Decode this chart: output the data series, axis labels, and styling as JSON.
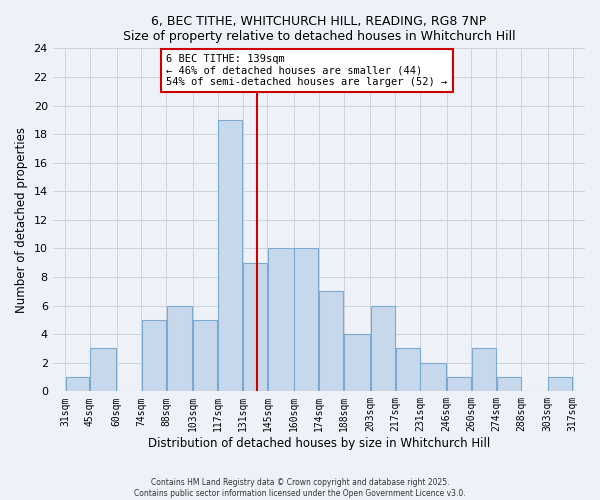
{
  "title_line1": "6, BEC TITHE, WHITCHURCH HILL, READING, RG8 7NP",
  "title_line2": "Size of property relative to detached houses in Whitchurch Hill",
  "xlabel": "Distribution of detached houses by size in Whitchurch Hill",
  "ylabel": "Number of detached properties",
  "bin_edges": [
    31,
    45,
    60,
    74,
    88,
    103,
    117,
    131,
    145,
    160,
    174,
    188,
    203,
    217,
    231,
    246,
    260,
    274,
    288,
    303,
    317
  ],
  "bin_labels": [
    "31sqm",
    "45sqm",
    "60sqm",
    "74sqm",
    "88sqm",
    "103sqm",
    "117sqm",
    "131sqm",
    "145sqm",
    "160sqm",
    "174sqm",
    "188sqm",
    "203sqm",
    "217sqm",
    "231sqm",
    "246sqm",
    "260sqm",
    "274sqm",
    "288sqm",
    "303sqm",
    "317sqm"
  ],
  "counts": [
    1,
    3,
    0,
    5,
    6,
    5,
    19,
    9,
    10,
    10,
    7,
    4,
    6,
    3,
    2,
    1,
    3,
    1,
    0,
    1
  ],
  "bar_color": "#c8d8ec",
  "bar_edge_color": "#7aaad0",
  "vline_x": 139,
  "vline_color": "#cc0000",
  "ylim": [
    0,
    24
  ],
  "yticks": [
    0,
    2,
    4,
    6,
    8,
    10,
    12,
    14,
    16,
    18,
    20,
    22,
    24
  ],
  "annotation_title": "6 BEC TITHE: 139sqm",
  "annotation_line1": "← 46% of detached houses are smaller (44)",
  "annotation_line2": "54% of semi-detached houses are larger (52) →",
  "annotation_box_color": "#ffffff",
  "annotation_box_edge": "#cc0000",
  "grid_color": "#c8d4e0",
  "background_color": "#eef2f8",
  "footer_line1": "Contains HM Land Registry data © Crown copyright and database right 2025.",
  "footer_line2": "Contains public sector information licensed under the Open Government Licence v3.0."
}
